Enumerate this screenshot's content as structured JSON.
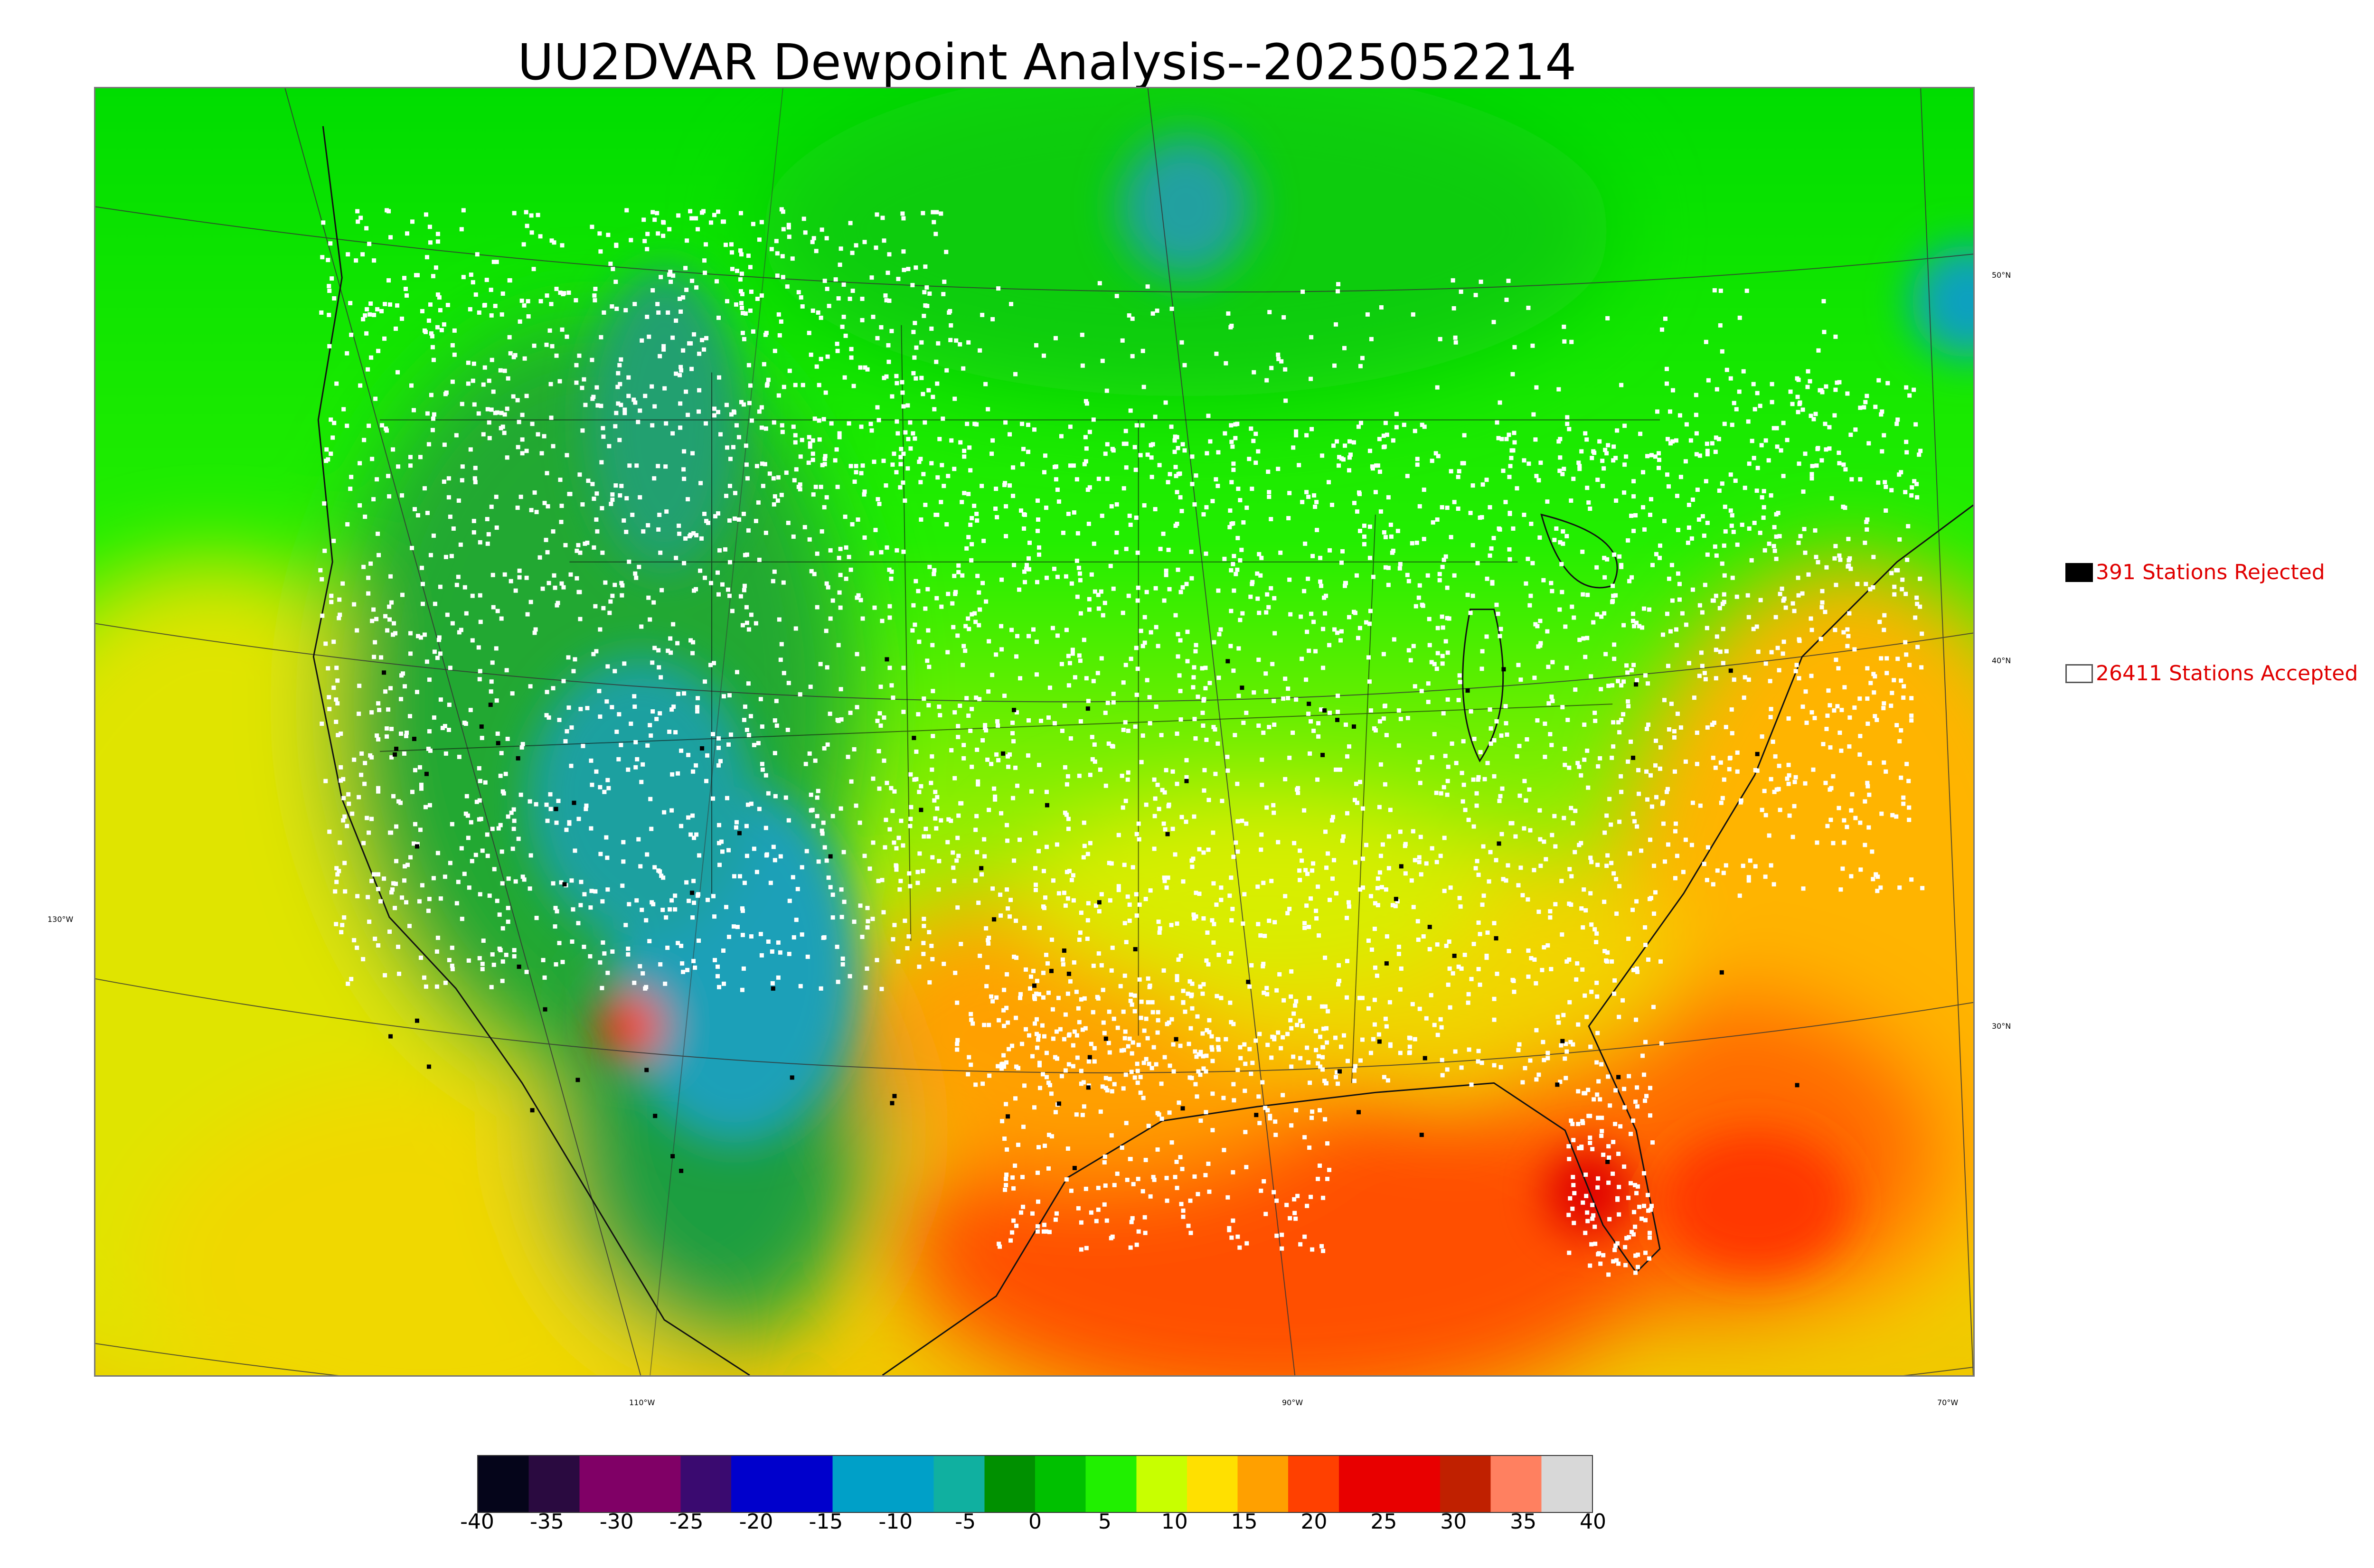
{
  "title": "UU2DVAR Dewpoint Analysis--2025052214",
  "legend": {
    "rejected": {
      "count": 391,
      "label": "391 Stations Rejected"
    },
    "accepted": {
      "count": 26411,
      "label": "26411 Stations Accepted"
    }
  },
  "latitude_labels": [
    "50°N",
    "40°N",
    "30°N",
    "130°W"
  ],
  "longitude_labels": [
    "110°W",
    "90°W",
    "70°W"
  ],
  "colorbar": {
    "ticks": [
      "-40",
      "-35",
      "-30",
      "-25",
      "-20",
      "-15",
      "-10",
      "-5",
      "0",
      "5",
      "10",
      "15",
      "20",
      "25",
      "30",
      "35",
      "40"
    ],
    "range": [
      -40,
      40
    ],
    "colors": [
      "#05051a",
      "#2a0a40",
      "#800066",
      "#800066",
      "#3a0a70",
      "#0000cc",
      "#0000cc",
      "#00a0c8",
      "#00a0c8",
      "#10b0a0",
      "#009000",
      "#00c000",
      "#20f000",
      "#c8ff00",
      "#ffe000",
      "#ffa000",
      "#ff4000",
      "#e80000",
      "#e80000",
      "#c02000",
      "#ff8060",
      "#d8d8d8"
    ]
  },
  "field_colors": {
    "ocean_pacific": "#e6e600",
    "ocean_gulf": "#ff5a00",
    "ocean_atlantic": "#ffb000",
    "canada": "#00dd00",
    "rockies": "#1aa030",
    "southwest_dry": "#18a0b0",
    "southeast": "#f0d000",
    "station_accepted": "#ffffff",
    "station_rejected": "#000000"
  }
}
